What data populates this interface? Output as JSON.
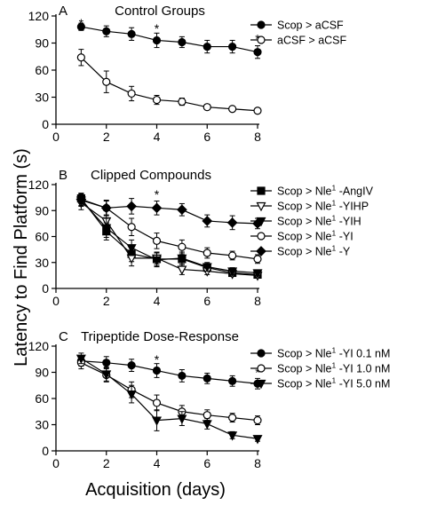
{
  "figure": {
    "ylabel": "Latency to Find Platform (s)",
    "xlabel": "Acquisition (days)"
  },
  "chart_data": [
    {
      "type": "line",
      "panel_label": "A",
      "title": "Control Groups",
      "x": [
        1,
        2,
        3,
        4,
        5,
        6,
        7,
        8
      ],
      "xlim": [
        0,
        8
      ],
      "xticks": [
        "0",
        "2",
        "4",
        "6",
        "8"
      ],
      "ylim": [
        0,
        120
      ],
      "yticks": [
        "0",
        "30",
        "60",
        "90",
        "120"
      ],
      "significance": [
        {
          "x": 1,
          "y": 113
        },
        {
          "x": 4,
          "y": 107
        },
        {
          "x": 8,
          "y": 96
        }
      ],
      "series": [
        {
          "name": "Scop > aCSF",
          "marker": "filled-circle",
          "values": [
            108,
            103,
            100,
            93,
            91,
            86,
            86,
            80
          ],
          "errors": [
            4,
            6,
            7,
            8,
            6,
            7,
            7,
            7
          ]
        },
        {
          "name": "aCSF > aCSF",
          "marker": "open-circle",
          "values": [
            74,
            47,
            34,
            27,
            25,
            19,
            17,
            15
          ],
          "errors": [
            9,
            12,
            8,
            5,
            4,
            3,
            2,
            2
          ]
        }
      ]
    },
    {
      "type": "line",
      "panel_label": "B",
      "title": "Clipped Compounds",
      "x": [
        1,
        2,
        3,
        4,
        5,
        6,
        7,
        8
      ],
      "xlim": [
        0,
        8
      ],
      "xticks": [
        "0",
        "2",
        "4",
        "6",
        "8"
      ],
      "ylim": [
        0,
        120
      ],
      "yticks": [
        "0",
        "30",
        "60",
        "90",
        "120"
      ],
      "significance": [
        {
          "x": 4,
          "y": 110
        }
      ],
      "series": [
        {
          "name": "Scop > Nle",
          "sup": "1",
          "suffix": " -AngIV",
          "marker": "filled-square",
          "values": [
            104,
            66,
            40,
            34,
            34,
            24,
            18,
            16
          ],
          "errors": [
            6,
            10,
            9,
            8,
            8,
            5,
            4,
            3
          ]
        },
        {
          "name": "Scop > Nle",
          "sup": "1",
          "suffix": " -YIHP",
          "marker": "open-triangle-down",
          "values": [
            99,
            78,
            35,
            35,
            22,
            20,
            17,
            15
          ],
          "errors": [
            8,
            12,
            9,
            7,
            6,
            4,
            3,
            3
          ]
        },
        {
          "name": "Scop > Nle",
          "sup": "1",
          "suffix": " -YIH",
          "marker": "filled-triangle-down",
          "values": [
            102,
            70,
            47,
            33,
            35,
            25,
            20,
            18
          ],
          "errors": [
            7,
            11,
            9,
            8,
            7,
            5,
            4,
            3
          ]
        },
        {
          "name": "Scop > Nle",
          "sup": "1",
          "suffix": " -YI",
          "marker": "open-circle",
          "values": [
            102,
            93,
            71,
            55,
            48,
            41,
            38,
            34
          ],
          "errors": [
            7,
            9,
            10,
            9,
            8,
            6,
            5,
            5
          ]
        },
        {
          "name": "Scop > Nle",
          "sup": "1",
          "suffix": " -Y",
          "marker": "filled-diamond",
          "values": [
            103,
            93,
            95,
            93,
            91,
            78,
            76,
            75
          ],
          "errors": [
            7,
            8,
            9,
            8,
            7,
            7,
            8,
            6
          ]
        }
      ]
    },
    {
      "type": "line",
      "panel_label": "C",
      "title": "Tripeptide Dose-Response",
      "x": [
        1,
        2,
        3,
        4,
        5,
        6,
        7,
        8
      ],
      "xlim": [
        0,
        8
      ],
      "xticks": [
        "0",
        "2",
        "4",
        "6",
        "8"
      ],
      "ylim": [
        0,
        120
      ],
      "yticks": [
        "0",
        "30",
        "60",
        "90",
        "120"
      ],
      "significance": [
        {
          "x": 4,
          "y": 106
        },
        {
          "x": 8,
          "y": 91
        }
      ],
      "series": [
        {
          "name": "Scop > Nle",
          "sup": "1",
          "suffix": " -YI 0.1 nM",
          "marker": "filled-circle",
          "values": [
            103,
            101,
            98,
            92,
            86,
            83,
            80,
            77
          ],
          "errors": [
            6,
            7,
            7,
            8,
            7,
            6,
            6,
            6
          ]
        },
        {
          "name": "Scop > Nle",
          "sup": "1",
          "suffix": " -YI 1.0 nM",
          "marker": "open-circle",
          "values": [
            101,
            87,
            70,
            55,
            45,
            41,
            38,
            35
          ],
          "errors": [
            7,
            8,
            9,
            9,
            7,
            6,
            5,
            5
          ]
        },
        {
          "name": "Scop > Nle",
          "sup": "1",
          "suffix": " -YI 5.0 nM",
          "marker": "filled-triangle-down",
          "values": [
            106,
            88,
            65,
            35,
            37,
            31,
            18,
            14
          ],
          "errors": [
            6,
            8,
            10,
            12,
            8,
            6,
            4,
            3
          ]
        }
      ]
    }
  ]
}
